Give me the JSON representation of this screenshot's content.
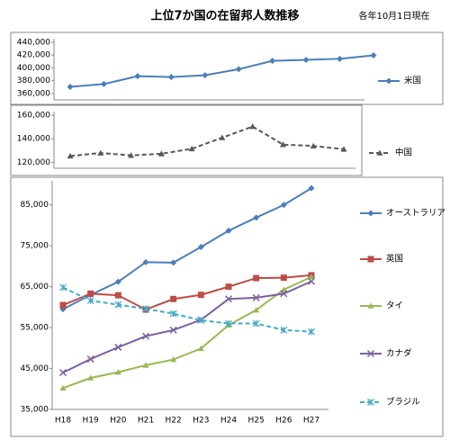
{
  "title": "上位7か国の在留邦人数推移",
  "note": "各年10月1日現在",
  "chart_data": [
    {
      "type": "line",
      "ylim": [
        350000,
        440000
      ],
      "yticks": [
        {
          "value": 360000,
          "label": "360,000"
        },
        {
          "value": 380000,
          "label": "380,000"
        },
        {
          "value": 400000,
          "label": "400,000"
        },
        {
          "value": 420000,
          "label": "420,000"
        },
        {
          "value": 440000,
          "label": "440,000"
        }
      ],
      "series": [
        {
          "name": "米国",
          "color": "#4a7ebb",
          "marker": "diamond",
          "dash": false,
          "values": [
            370386,
            374732,
            387066,
            385635,
            388457,
            397937,
            410973,
            412639,
            414247,
            419610
          ]
        }
      ]
    },
    {
      "type": "line",
      "ylim": [
        115000,
        160000
      ],
      "yticks": [
        {
          "value": 120000,
          "label": "120,000"
        },
        {
          "value": 140000,
          "label": "140,000"
        },
        {
          "value": 160000,
          "label": "160,000"
        }
      ],
      "series": [
        {
          "name": "中国",
          "color": "#595959",
          "marker": "triangle",
          "dash": true,
          "values": [
            125417,
            127905,
            125928,
            127282,
            131534,
            140931,
            150399,
            135078,
            133902,
            131161
          ]
        }
      ]
    },
    {
      "type": "line",
      "ylim": [
        35000,
        90000
      ],
      "categories": [
        "H18",
        "H19",
        "H20",
        "H21",
        "H22",
        "H23",
        "H24",
        "H25",
        "H26",
        "H27"
      ],
      "yticks": [
        {
          "value": 35000,
          "label": "35,000"
        },
        {
          "value": 45000,
          "label": "45,000"
        },
        {
          "value": 55000,
          "label": "55,000"
        },
        {
          "value": 65000,
          "label": "65,000"
        },
        {
          "value": 75000,
          "label": "75,000"
        },
        {
          "value": 85000,
          "label": "85,000"
        }
      ],
      "series": [
        {
          "name": "オーストラリア",
          "color": "#4a7ebb",
          "marker": "diamond",
          "dash": false,
          "values": [
            59500,
            63000,
            66200,
            71000,
            70900,
            74700,
            78700,
            81900,
            85000,
            89100
          ]
        },
        {
          "name": "英国",
          "color": "#be4b48",
          "marker": "square",
          "dash": false,
          "values": [
            60500,
            63300,
            62900,
            59400,
            62000,
            63000,
            65000,
            67100,
            67200,
            67800
          ]
        },
        {
          "name": "タイ",
          "color": "#98b954",
          "marker": "triangle",
          "dash": false,
          "values": [
            40200,
            42700,
            44100,
            45800,
            47200,
            49900,
            55600,
            59300,
            64300,
            67400
          ]
        },
        {
          "name": "カナダ",
          "color": "#7d60a0",
          "marker": "x",
          "dash": false,
          "values": [
            44000,
            47300,
            50200,
            52900,
            54400,
            56900,
            62000,
            62300,
            63300,
            66300
          ]
        },
        {
          "name": "ブラジル",
          "color": "#46aac5",
          "marker": "star",
          "dash": true,
          "values": [
            64800,
            61600,
            60600,
            59600,
            58400,
            56800,
            56000,
            56000,
            54400,
            54000
          ]
        }
      ]
    }
  ]
}
